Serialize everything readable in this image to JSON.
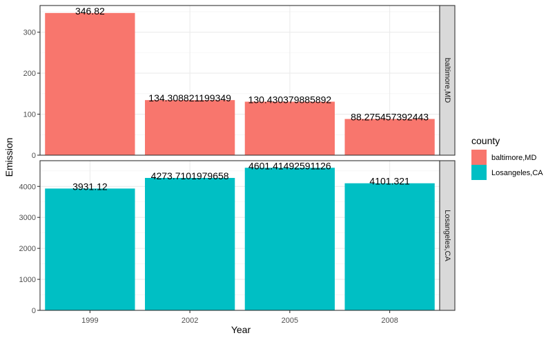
{
  "chart_data": {
    "type": "bar",
    "xlabel": "Year",
    "ylabel": "Emission",
    "categories": [
      "1999",
      "2002",
      "2005",
      "2008"
    ],
    "legend": {
      "title": "county",
      "position": "right"
    },
    "grid": true,
    "facets": [
      {
        "name": "baltimore,MD",
        "color": "#F8766D",
        "values": [
          346.82,
          134.308821199349,
          130.430379885892,
          88.275457392443
        ],
        "labels": [
          "346.82",
          "134.308821199349",
          "130.430379885892",
          "88.275457392443"
        ],
        "ylim": [
          0,
          365
        ],
        "yticks": [
          0,
          100,
          200,
          300
        ]
      },
      {
        "name": "Losangeles,CA",
        "color": "#00BFC4",
        "values": [
          3931.12,
          4273.7101979658,
          4601.41492591126,
          4101.321
        ],
        "labels": [
          "3931.12",
          "4273.7101979658",
          "4601.41492591126",
          "4101.321"
        ],
        "ylim": [
          0,
          4830
        ],
        "yticks": [
          0,
          1000,
          2000,
          3000,
          4000
        ]
      }
    ]
  }
}
